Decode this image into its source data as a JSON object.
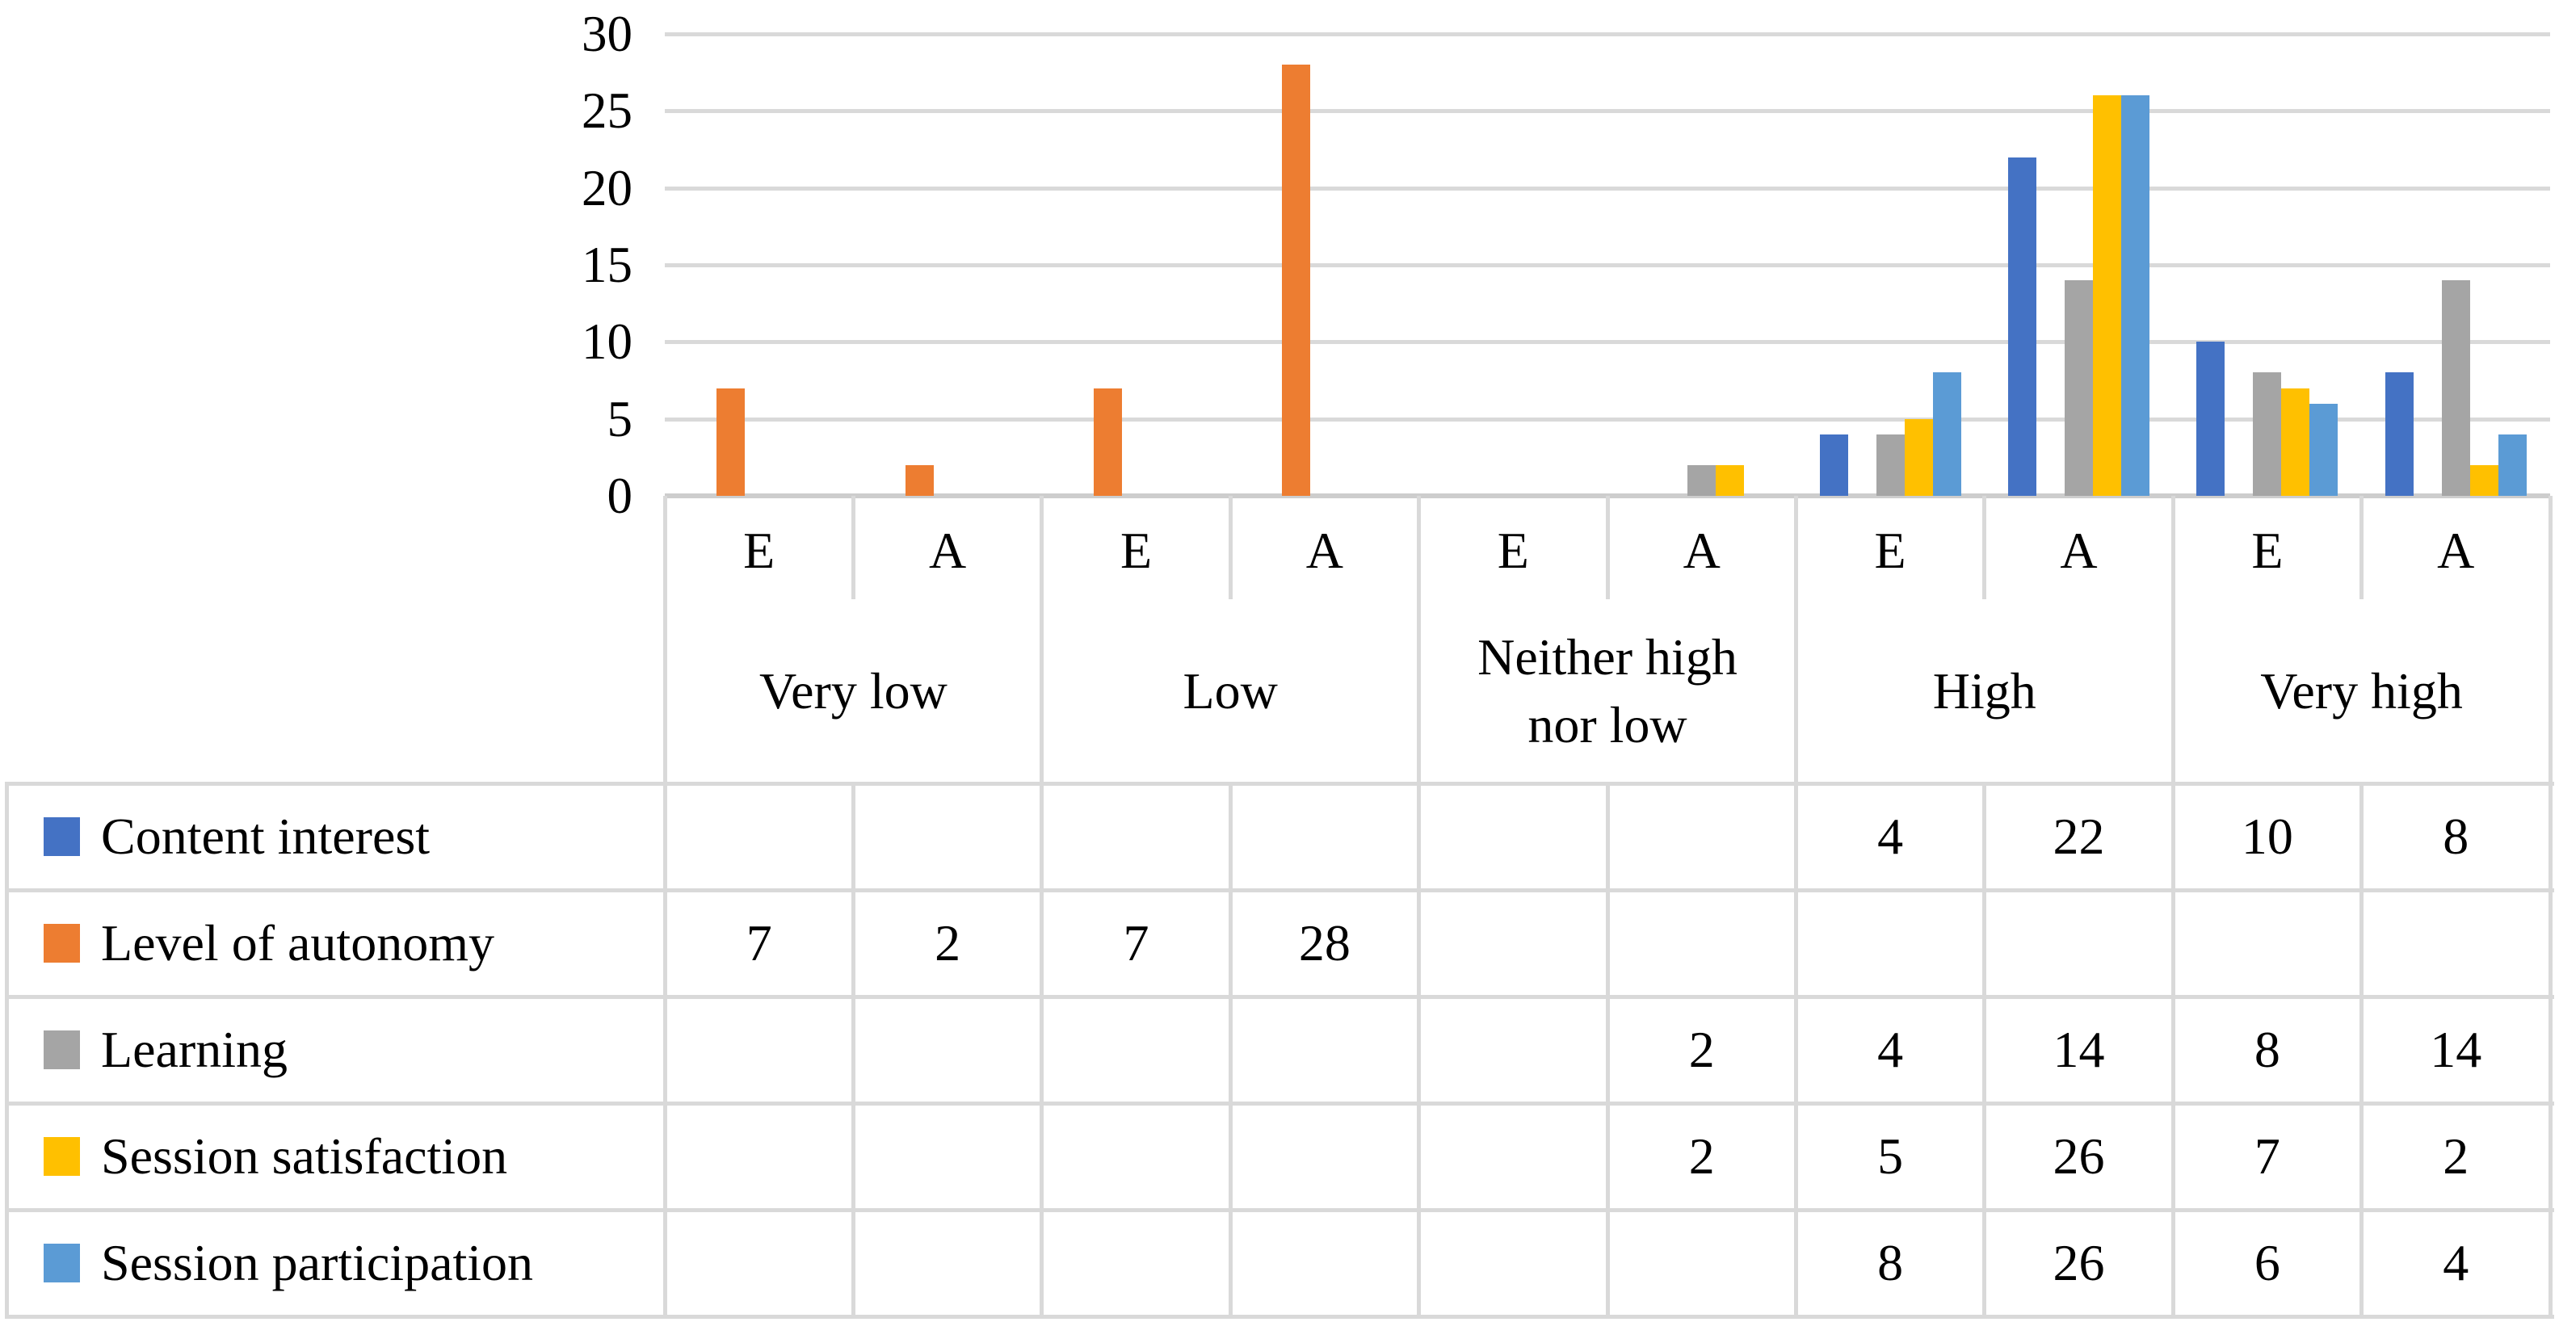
{
  "chart_data": {
    "type": "bar",
    "title": "",
    "grid": true,
    "legend_position": "table-left",
    "y_axis": {
      "min": 0,
      "max": 30,
      "tick_step": 5,
      "ticks": [
        30,
        25,
        20,
        15,
        10,
        5,
        0
      ]
    },
    "group_labels": [
      "Very low",
      "Low",
      "Neither high\nnor low",
      "High",
      "Very high"
    ],
    "sub_labels": [
      "E",
      "A"
    ],
    "categories": [
      "Very low E",
      "Very low A",
      "Low E",
      "Low A",
      "Neither high nor low E",
      "Neither high nor low A",
      "High E",
      "High A",
      "Very high E",
      "Very high A"
    ],
    "series": [
      {
        "name": "Content interest",
        "color": "#4472C4",
        "values": [
          null,
          null,
          null,
          null,
          null,
          null,
          4,
          22,
          10,
          8
        ]
      },
      {
        "name": "Level of autonomy",
        "color": "#ED7D31",
        "values": [
          7,
          2,
          7,
          28,
          null,
          null,
          null,
          null,
          null,
          null
        ]
      },
      {
        "name": "Learning",
        "color": "#A5A5A5",
        "values": [
          null,
          null,
          null,
          null,
          null,
          2,
          4,
          14,
          8,
          14
        ]
      },
      {
        "name": "Session satisfaction",
        "color": "#FFC000",
        "values": [
          null,
          null,
          null,
          null,
          null,
          2,
          5,
          26,
          7,
          2
        ]
      },
      {
        "name": "Session participation",
        "color": "#5B9BD5",
        "values": [
          null,
          null,
          null,
          null,
          null,
          null,
          8,
          26,
          6,
          4
        ]
      }
    ],
    "colors": {
      "gridline": "#D9D9D9",
      "axis_line": "#CDCDCD",
      "table_border": "#D9D9D9",
      "text": "#000000",
      "background": "#FFFFFF"
    }
  }
}
